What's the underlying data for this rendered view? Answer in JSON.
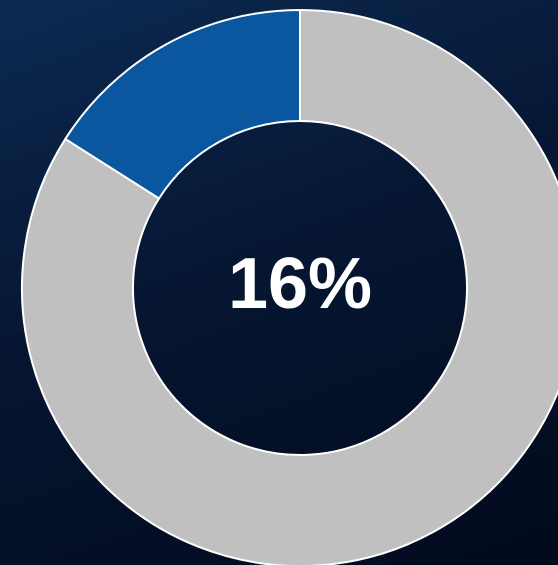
{
  "chart_data": {
    "type": "donut",
    "values": [
      16,
      84
    ],
    "value_labels": [
      "16%",
      null
    ],
    "colors": [
      "#0a57a0",
      "#c0c0c0"
    ],
    "direction": "counterclockwise"
  }
}
